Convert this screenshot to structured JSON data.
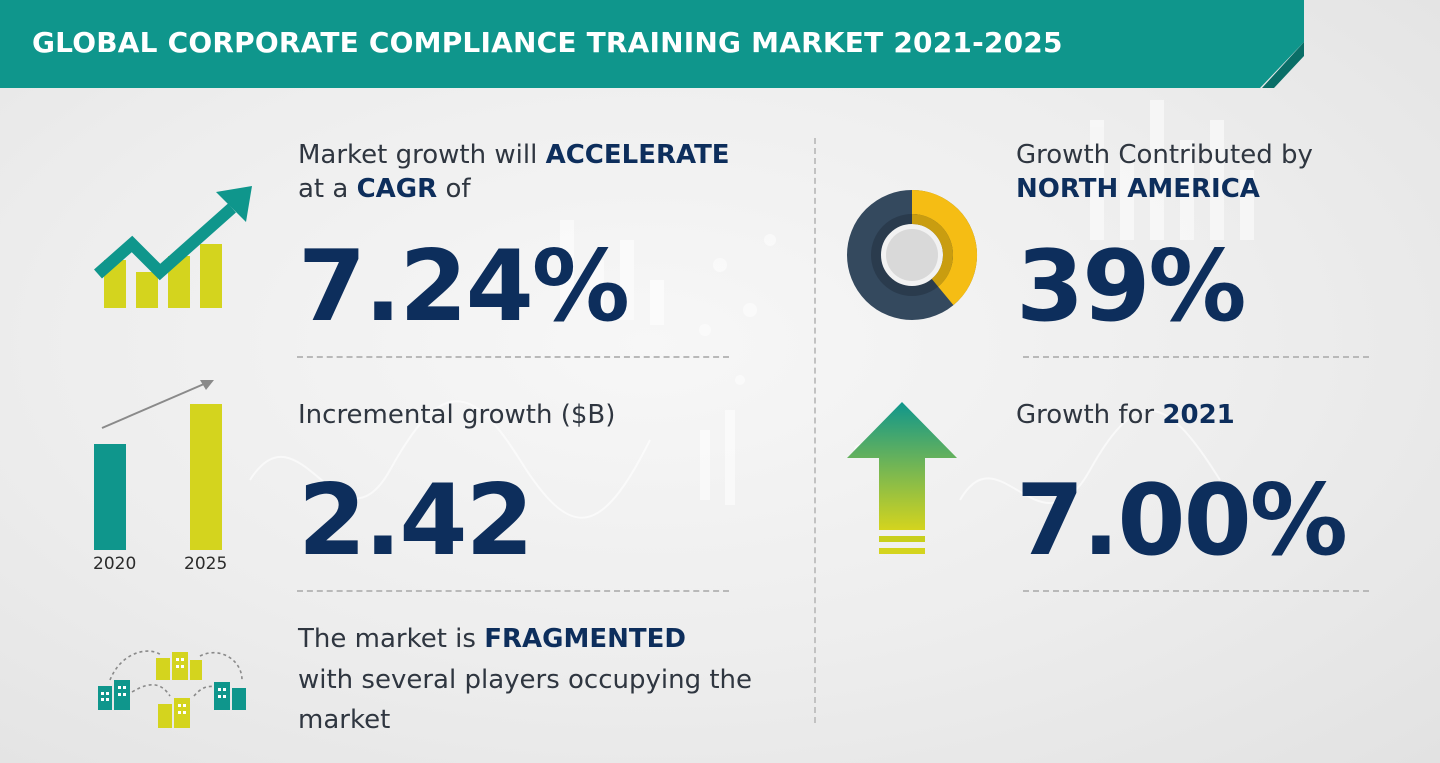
{
  "title": "GLOBAL CORPORATE COMPLIANCE TRAINING MARKET 2021-2025",
  "colors": {
    "teal": "#0f968c",
    "navy": "#0d2e5c",
    "lime": "#d4d41e",
    "yellow": "#f5bd14",
    "slate": "#34495e"
  },
  "cagr": {
    "line1_prefix": "Market growth will",
    "line1_bold": "ACCELERATE",
    "line2_prefix": "at a",
    "line2_bold": "CAGR",
    "line2_suffix": "of",
    "value": "7.24%",
    "icon": "growth-chart-icon"
  },
  "incremental": {
    "label": "Incremental growth ($B)",
    "value": "2.42",
    "year_start": "2020",
    "year_end": "2025",
    "icon": "bar-comparison-icon"
  },
  "fragmented": {
    "line1_prefix": "The market is",
    "line1_bold": "FRAGMENTED",
    "line2": "with several players occupying the",
    "line3": "market",
    "icon": "buildings-network-icon"
  },
  "region": {
    "line1": "Growth Contributed by",
    "line2": "NORTH AMERICA",
    "value": "39%",
    "share_fraction": 0.39,
    "icon": "donut-chart-icon"
  },
  "yoy": {
    "label_prefix": "Growth for",
    "label_year": "2021",
    "value": "7.00%",
    "icon": "up-arrow-icon"
  }
}
